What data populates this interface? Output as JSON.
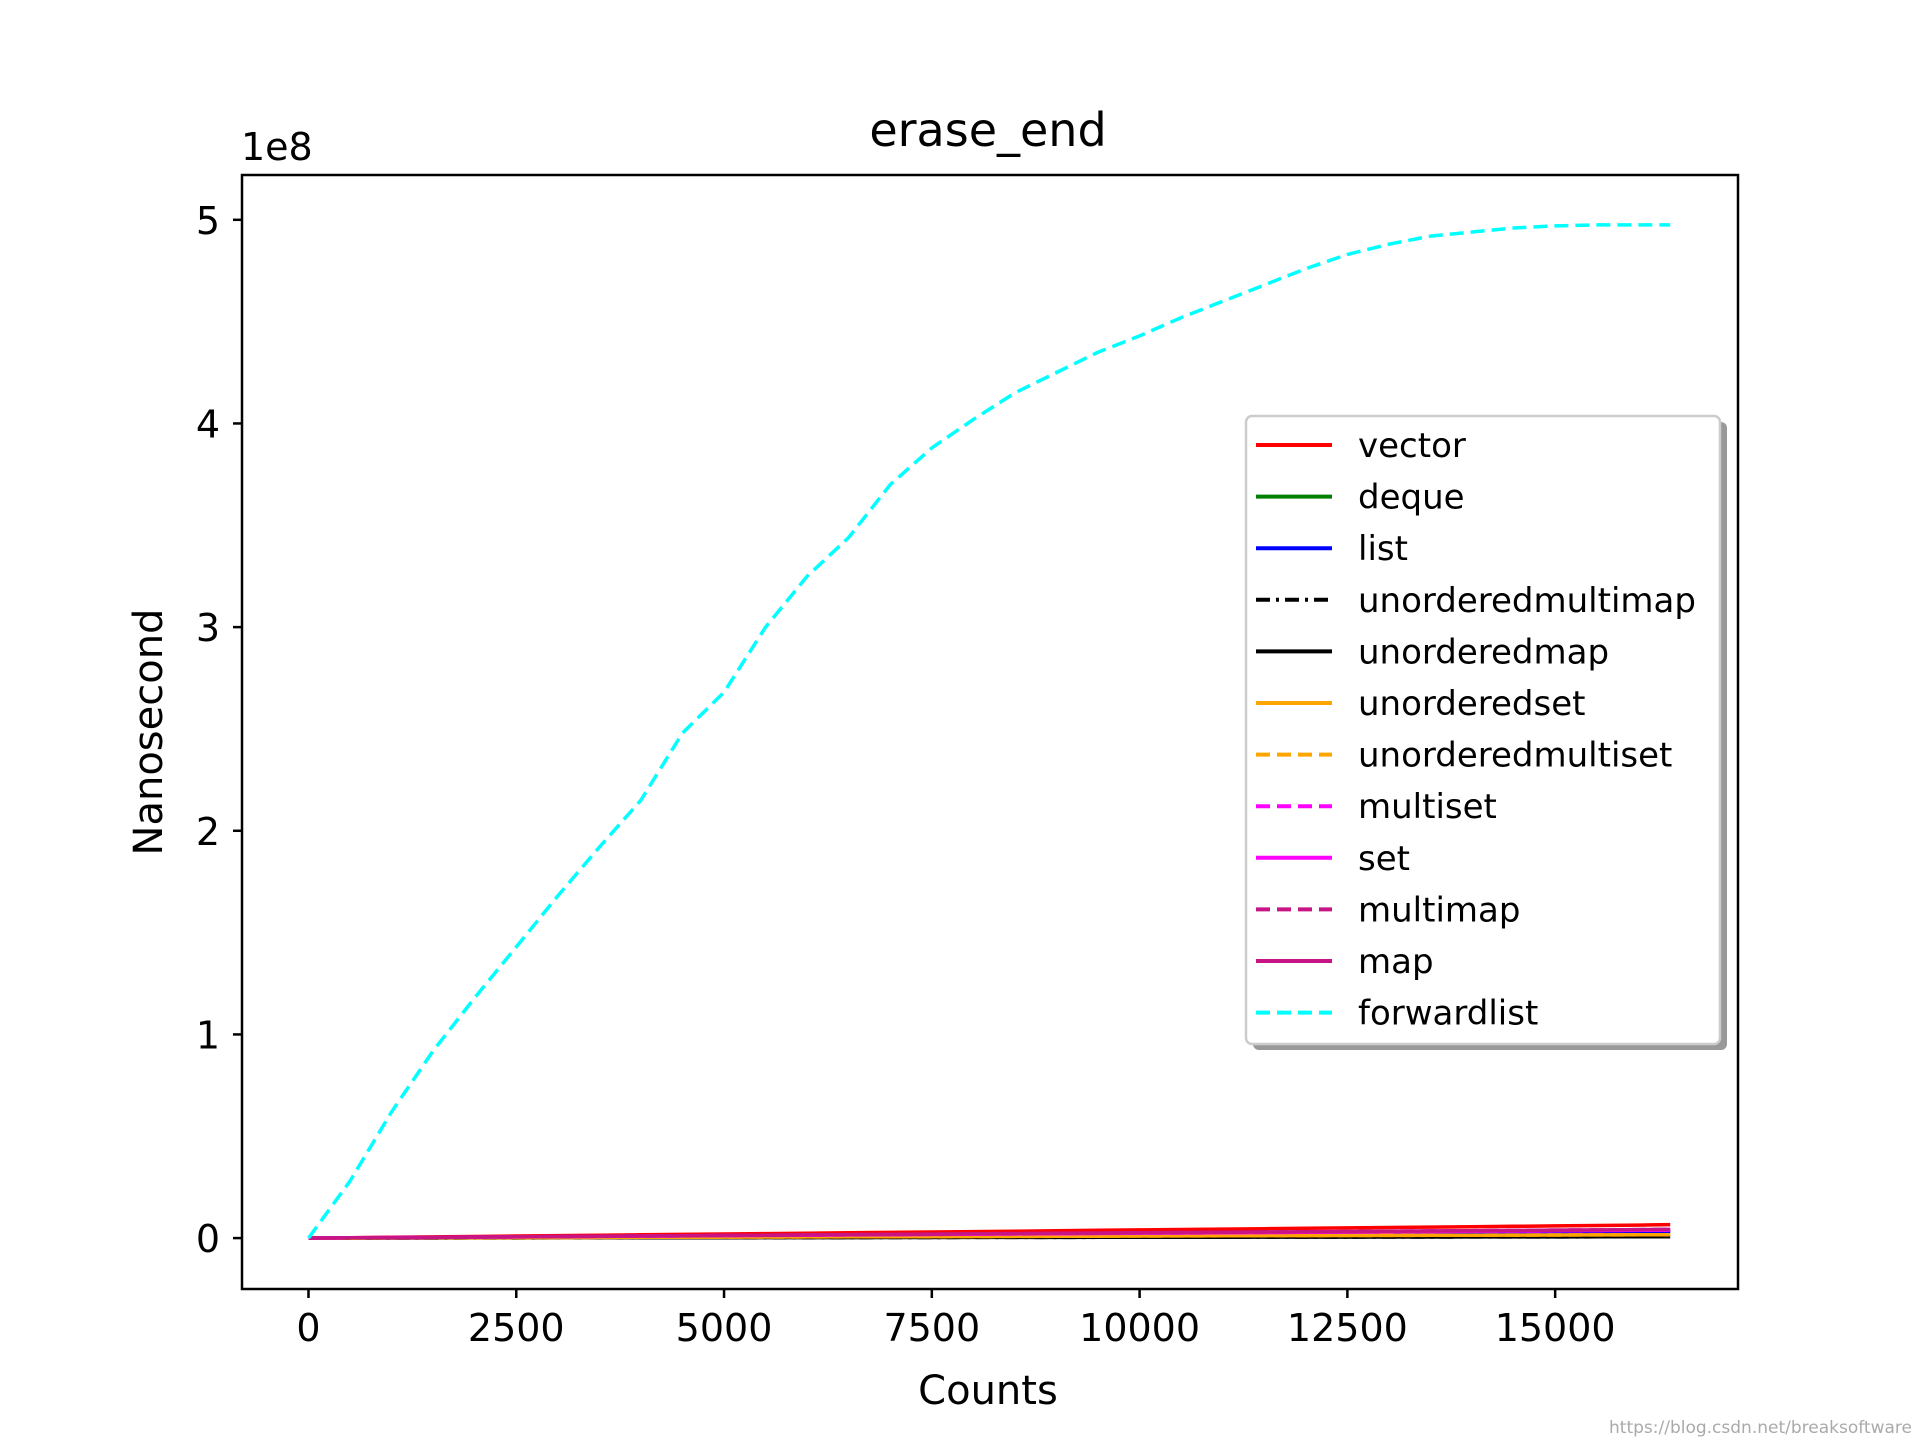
{
  "chart_data": {
    "type": "line",
    "title": "erase_end",
    "xlabel": "Counts",
    "ylabel": "Nanosecond",
    "y_offset_label": "1e8",
    "y_multiplier": 100000000,
    "xlim": [
      -800,
      17200
    ],
    "ylim": [
      -0.25,
      5.22
    ],
    "x_ticks": [
      0,
      2500,
      5000,
      7500,
      10000,
      12500,
      15000
    ],
    "x_tick_labels": [
      "0",
      "2500",
      "5000",
      "7500",
      "10000",
      "12500",
      "15000"
    ],
    "y_ticks": [
      0,
      1,
      2,
      3,
      4,
      5
    ],
    "y_tick_labels": [
      "0",
      "1",
      "2",
      "3",
      "4",
      "5"
    ],
    "grid": false,
    "legend_position": "center-right",
    "x": [
      0,
      500,
      1000,
      1500,
      2000,
      2500,
      3000,
      3500,
      4000,
      4500,
      5000,
      5500,
      6000,
      6500,
      7000,
      7500,
      8000,
      8500,
      9000,
      9500,
      10000,
      10500,
      11000,
      11500,
      12000,
      12500,
      13000,
      13500,
      14000,
      14500,
      15000,
      15500,
      16000,
      16384
    ],
    "series": [
      {
        "name": "vector",
        "color": "#ff0000",
        "style": "solid",
        "values": [
          0,
          0.002,
          0.004,
          0.006,
          0.008,
          0.01,
          0.012,
          0.014,
          0.016,
          0.018,
          0.02,
          0.022,
          0.024,
          0.026,
          0.028,
          0.03,
          0.032,
          0.034,
          0.036,
          0.038,
          0.04,
          0.042,
          0.044,
          0.046,
          0.048,
          0.05,
          0.052,
          0.054,
          0.056,
          0.058,
          0.06,
          0.062,
          0.064,
          0.066
        ]
      },
      {
        "name": "deque",
        "color": "#008000",
        "style": "solid",
        "values": [
          0,
          0.001,
          0.002,
          0.003,
          0.004,
          0.005,
          0.006,
          0.007,
          0.008,
          0.009,
          0.01,
          0.011,
          0.012,
          0.013,
          0.014,
          0.015,
          0.016,
          0.017,
          0.018,
          0.019,
          0.02,
          0.021,
          0.022,
          0.023,
          0.024,
          0.025,
          0.026,
          0.027,
          0.028,
          0.029,
          0.03,
          0.031,
          0.032,
          0.033
        ]
      },
      {
        "name": "list",
        "color": "#0000ff",
        "style": "solid",
        "values": [
          0,
          0.001,
          0.002,
          0.003,
          0.004,
          0.005,
          0.006,
          0.007,
          0.008,
          0.009,
          0.01,
          0.011,
          0.012,
          0.013,
          0.014,
          0.015,
          0.016,
          0.017,
          0.018,
          0.019,
          0.02,
          0.021,
          0.022,
          0.023,
          0.024,
          0.025,
          0.026,
          0.027,
          0.028,
          0.029,
          0.03,
          0.031,
          0.032,
          0.033
        ]
      },
      {
        "name": "unorderedmultimap",
        "color": "#000000",
        "style": "dashdot",
        "values": [
          0,
          0.0002,
          0.0004,
          0.0006,
          0.0008,
          0.001,
          0.0012,
          0.0014,
          0.0016,
          0.0018,
          0.002,
          0.0022,
          0.0024,
          0.0026,
          0.0028,
          0.003,
          0.0032,
          0.0034,
          0.0036,
          0.0038,
          0.004,
          0.0042,
          0.0044,
          0.0046,
          0.0048,
          0.005,
          0.0052,
          0.0054,
          0.0056,
          0.0058,
          0.006,
          0.0062,
          0.0064,
          0.0066
        ]
      },
      {
        "name": "unorderedmap",
        "color": "#000000",
        "style": "solid",
        "values": [
          0,
          0.0002,
          0.0004,
          0.0006,
          0.0008,
          0.001,
          0.0012,
          0.0014,
          0.0016,
          0.0018,
          0.002,
          0.0022,
          0.0024,
          0.0026,
          0.0028,
          0.003,
          0.0032,
          0.0034,
          0.0036,
          0.0038,
          0.004,
          0.0042,
          0.0044,
          0.0046,
          0.0048,
          0.005,
          0.0052,
          0.0054,
          0.0056,
          0.0058,
          0.006,
          0.0062,
          0.0064,
          0.0066
        ]
      },
      {
        "name": "unorderedset",
        "color": "#ffa500",
        "style": "solid",
        "values": [
          0,
          0.0005,
          0.001,
          0.0015,
          0.002,
          0.0025,
          0.003,
          0.0035,
          0.004,
          0.0045,
          0.005,
          0.0055,
          0.006,
          0.0065,
          0.007,
          0.0075,
          0.008,
          0.0085,
          0.009,
          0.0095,
          0.01,
          0.0105,
          0.011,
          0.0115,
          0.012,
          0.0125,
          0.013,
          0.0135,
          0.014,
          0.0145,
          0.015,
          0.0155,
          0.016,
          0.0165
        ]
      },
      {
        "name": "unorderedmultiset",
        "color": "#ffa500",
        "style": "dashed",
        "values": [
          0,
          0.0005,
          0.001,
          0.0015,
          0.002,
          0.0025,
          0.003,
          0.0035,
          0.004,
          0.0045,
          0.005,
          0.0055,
          0.006,
          0.0065,
          0.007,
          0.0075,
          0.008,
          0.0085,
          0.009,
          0.0095,
          0.01,
          0.0105,
          0.011,
          0.0115,
          0.012,
          0.0125,
          0.013,
          0.0135,
          0.014,
          0.0145,
          0.015,
          0.0155,
          0.016,
          0.0165
        ]
      },
      {
        "name": "multiset",
        "color": "#ff00ff",
        "style": "dashed",
        "values": [
          0,
          0.0012,
          0.0024,
          0.0036,
          0.0048,
          0.006,
          0.0072,
          0.0084,
          0.0096,
          0.0108,
          0.012,
          0.0132,
          0.0144,
          0.0156,
          0.0168,
          0.018,
          0.0192,
          0.0204,
          0.0216,
          0.0228,
          0.024,
          0.0252,
          0.0264,
          0.0276,
          0.0288,
          0.03,
          0.0312,
          0.0324,
          0.0336,
          0.0348,
          0.036,
          0.0372,
          0.0384,
          0.0393
        ]
      },
      {
        "name": "set",
        "color": "#ff00ff",
        "style": "solid",
        "values": [
          0,
          0.0012,
          0.0024,
          0.0036,
          0.0048,
          0.006,
          0.0072,
          0.0084,
          0.0096,
          0.0108,
          0.012,
          0.0132,
          0.0144,
          0.0156,
          0.0168,
          0.018,
          0.0192,
          0.0204,
          0.0216,
          0.0228,
          0.024,
          0.0252,
          0.0264,
          0.0276,
          0.0288,
          0.03,
          0.0312,
          0.0324,
          0.0336,
          0.0348,
          0.036,
          0.0372,
          0.0384,
          0.0393
        ]
      },
      {
        "name": "multimap",
        "color": "#c71585",
        "style": "dashed",
        "values": [
          0,
          0.0013,
          0.0026,
          0.0039,
          0.0052,
          0.0065,
          0.0078,
          0.0091,
          0.0104,
          0.0117,
          0.013,
          0.0143,
          0.0156,
          0.0169,
          0.0182,
          0.0195,
          0.0208,
          0.0221,
          0.0234,
          0.0247,
          0.026,
          0.0273,
          0.0286,
          0.0299,
          0.0312,
          0.0325,
          0.0338,
          0.0351,
          0.0364,
          0.0377,
          0.039,
          0.0403,
          0.0416,
          0.0426
        ]
      },
      {
        "name": "map",
        "color": "#c71585",
        "style": "solid",
        "values": [
          0,
          0.0013,
          0.0026,
          0.0039,
          0.0052,
          0.0065,
          0.0078,
          0.0091,
          0.0104,
          0.0117,
          0.013,
          0.0143,
          0.0156,
          0.0169,
          0.0182,
          0.0195,
          0.0208,
          0.0221,
          0.0234,
          0.0247,
          0.026,
          0.0273,
          0.0286,
          0.0299,
          0.0312,
          0.0325,
          0.0338,
          0.0351,
          0.0364,
          0.0377,
          0.039,
          0.0403,
          0.0416,
          0.0426
        ]
      },
      {
        "name": "forwardlist",
        "color": "#00ffff",
        "style": "dashed",
        "values": [
          0,
          0.28,
          0.62,
          0.92,
          1.18,
          1.43,
          1.68,
          1.92,
          2.15,
          2.48,
          2.68,
          3.0,
          3.25,
          3.44,
          3.7,
          3.88,
          4.02,
          4.15,
          4.25,
          4.35,
          4.43,
          4.52,
          4.6,
          4.68,
          4.76,
          4.83,
          4.88,
          4.92,
          4.94,
          4.96,
          4.97,
          4.975,
          4.975,
          4.975
        ]
      }
    ]
  },
  "watermark": "https://blog.csdn.net/breaksoftware"
}
